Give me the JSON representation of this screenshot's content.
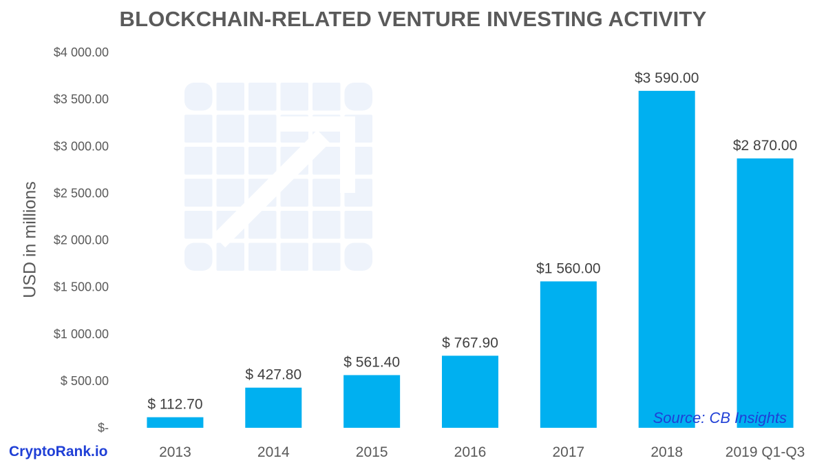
{
  "chart_data": {
    "type": "bar",
    "title": "BLOCKCHAIN-RELATED VENTURE INVESTING ACTIVITY",
    "ylabel": "USD in millions",
    "xlabel": "",
    "categories": [
      "2013",
      "2014",
      "2015",
      "2016",
      "2017",
      "2018",
      "2019 Q1-Q3"
    ],
    "values": [
      112.7,
      427.8,
      561.4,
      767.9,
      1560.0,
      3590.0,
      2870.0
    ],
    "data_labels": [
      "$ 112.70",
      "$ 427.80",
      "$ 561.40",
      "$ 767.90",
      "$1 560.00",
      "$3 590.00",
      "$2 870.00"
    ],
    "ylim": [
      0,
      4000
    ],
    "yticks": [
      0,
      500,
      1000,
      1500,
      2000,
      2500,
      3000,
      3500,
      4000
    ],
    "ytick_labels": [
      "$-",
      "$ 500.00",
      "$1 000.00",
      "$1 500.00",
      "$2 000.00",
      "$2 500.00",
      "$3 000.00",
      "$3 500.00",
      "$4 000.00"
    ],
    "bar_color": "#00b0f0",
    "grid": false,
    "legend": "none",
    "source_note": "Source: CB Insights"
  },
  "branding": {
    "site": "CryptoRank.io",
    "brand_color": "#1f3fd6",
    "watermark_icon": "chart-arrow-icon"
  },
  "colors": {
    "title": "#5a5a5a",
    "axis_text": "#595959",
    "watermark": "#eef3fb"
  }
}
